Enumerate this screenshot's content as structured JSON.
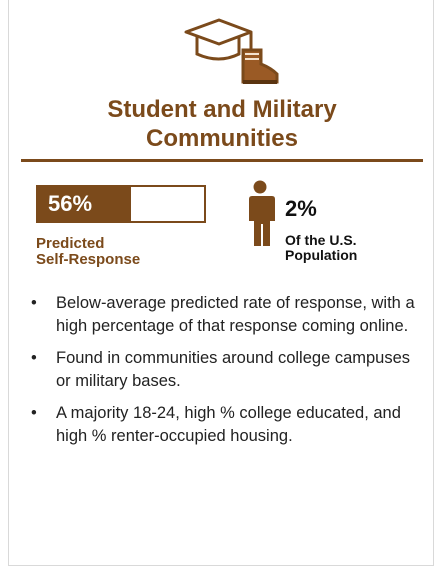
{
  "card": {
    "title": "Student and Military Communities",
    "response": {
      "value": 56,
      "label": "56%",
      "caption_lines": [
        "Predicted",
        "Self-Response"
      ]
    },
    "population": {
      "value": 2,
      "label": "2%",
      "caption_lines": [
        "Of the U.S.",
        "Population"
      ]
    },
    "bullets": [
      "Below-average predicted rate of response, with a high percentage of that response coming online.",
      "Found in communities around college campuses or military bases.",
      "A majority 18-24, high % college educated, and high % renter-occupied housing."
    ]
  }
}
